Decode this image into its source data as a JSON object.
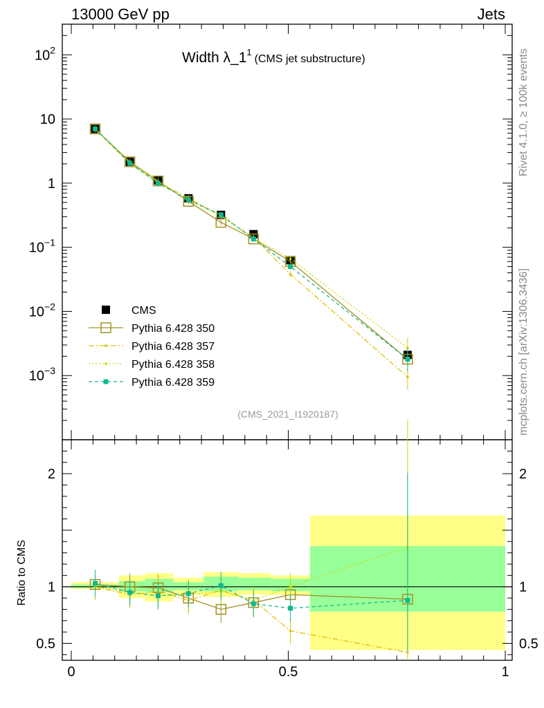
{
  "header": {
    "energy": "13000 GeV pp",
    "process": "Jets"
  },
  "title": {
    "main": "Width λ_1",
    "sup": "1",
    "sub": "(CMS jet substructure)"
  },
  "watermark": "(CMS_2021_I1920187)",
  "side": {
    "rivet": "Rivet 4.1.0, ≥ 100k events",
    "mcplots": "mcplots.cern.ch [arXiv:1306.3436]"
  },
  "ratio_ylabel": "Ratio to CMS",
  "colors": {
    "data": "#000000",
    "p350": "#a09020",
    "p357": "#e0c000",
    "p358": "#c8d800",
    "p359": "#10b890",
    "band_yellow": "#ffff88",
    "band_green": "#99ff99"
  },
  "chart_data": [
    {
      "type": "line",
      "name": "main",
      "yscale": "log",
      "xlim": [
        0,
        1
      ],
      "ylim": [
        0.0001,
        300
      ],
      "x_tick_labels": [
        "0",
        "0.5",
        "1"
      ],
      "y_tick_labels": [
        {
          "base": "10",
          "exp": "−3"
        },
        {
          "base": "10",
          "exp": "−2"
        },
        {
          "base": "10",
          "exp": "−1"
        },
        {
          "base": "1",
          "exp": ""
        },
        {
          "base": "10",
          "exp": ""
        },
        {
          "base": "10",
          "exp": "2"
        }
      ],
      "x": [
        0.055,
        0.135,
        0.2,
        0.27,
        0.345,
        0.42,
        0.505,
        0.775
      ],
      "series": [
        {
          "name": "CMS",
          "key": "data",
          "values": [
            7.0,
            2.15,
            1.1,
            0.58,
            0.32,
            0.16,
            0.063,
            0.0021
          ]
        },
        {
          "name": "Pythia 6.428 350",
          "key": "p350",
          "values": [
            7.0,
            2.15,
            1.08,
            0.52,
            0.245,
            0.135,
            0.06,
            0.0018
          ]
        },
        {
          "name": "Pythia 6.428 357",
          "key": "p357",
          "values": [
            6.9,
            2.1,
            1.05,
            0.58,
            0.31,
            0.14,
            0.038,
            0.00095
          ]
        },
        {
          "name": "Pythia 6.428 358",
          "key": "p358",
          "values": [
            6.9,
            2.0,
            1.0,
            0.55,
            0.3,
            0.14,
            0.066,
            0.0027
          ]
        },
        {
          "name": "Pythia 6.428 359",
          "key": "p359",
          "values": [
            7.0,
            2.05,
            1.0,
            0.55,
            0.32,
            0.135,
            0.05,
            0.0018
          ]
        }
      ]
    },
    {
      "type": "line",
      "name": "ratio",
      "ylabel": "Ratio to CMS",
      "xlim": [
        0,
        1
      ],
      "ylim": [
        0.35,
        2.3
      ],
      "y_tick_labels": [
        "0.5",
        "1",
        "2"
      ],
      "bins": [
        [
          0,
          0.11
        ],
        [
          0.11,
          0.17
        ],
        [
          0.17,
          0.235
        ],
        [
          0.235,
          0.305
        ],
        [
          0.305,
          0.385
        ],
        [
          0.385,
          0.46
        ],
        [
          0.46,
          0.55
        ],
        [
          0.55,
          1.0
        ]
      ],
      "band_total": [
        [
          0.98,
          1.04
        ],
        [
          0.9,
          1.1
        ],
        [
          0.87,
          1.12
        ],
        [
          0.93,
          1.08
        ],
        [
          0.91,
          1.13
        ],
        [
          0.93,
          1.12
        ],
        [
          0.93,
          1.1
        ],
        [
          0.44,
          1.63
        ]
      ],
      "band_stat": [
        [
          0.99,
          1.02
        ],
        [
          0.96,
          1.05
        ],
        [
          0.95,
          1.07
        ],
        [
          0.97,
          1.04
        ],
        [
          0.96,
          1.09
        ],
        [
          0.97,
          1.08
        ],
        [
          0.96,
          1.07
        ],
        [
          0.78,
          1.36
        ]
      ],
      "x": [
        0.055,
        0.135,
        0.2,
        0.27,
        0.345,
        0.42,
        0.505,
        0.775
      ],
      "series": [
        {
          "name": "Pythia 6.428 350",
          "key": "p350",
          "values": [
            1.02,
            1.0,
            0.99,
            0.9,
            0.8,
            0.86,
            0.93,
            0.89
          ]
        },
        {
          "name": "Pythia 6.428 357",
          "key": "p357",
          "values": [
            1.0,
            0.93,
            0.96,
            0.88,
            0.97,
            0.88,
            0.61,
            0.42
          ]
        },
        {
          "name": "Pythia 6.428 358",
          "key": "p358",
          "values": [
            1.0,
            0.95,
            0.92,
            0.93,
            0.96,
            0.88,
            1.0,
            1.35
          ]
        },
        {
          "name": "Pythia 6.428 359",
          "key": "p359",
          "values": [
            1.03,
            0.95,
            0.92,
            0.94,
            1.01,
            0.85,
            0.81,
            0.88
          ]
        }
      ]
    }
  ]
}
